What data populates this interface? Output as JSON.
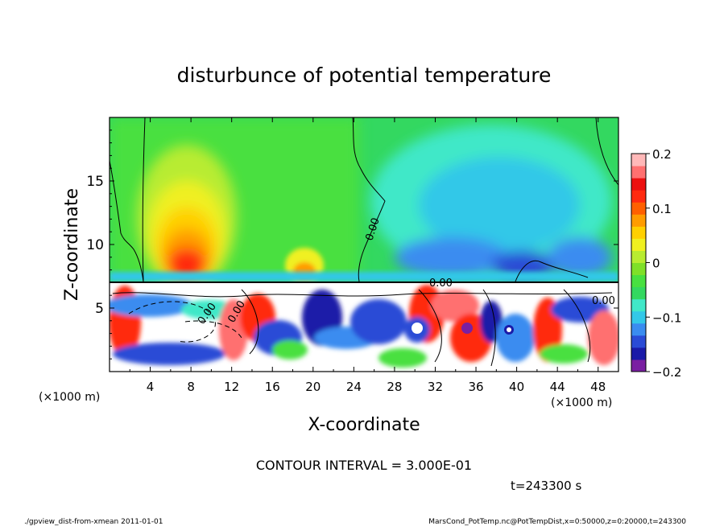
{
  "chart_data": {
    "type": "heatmap",
    "title": "disturbunce of potential temperature",
    "xlabel": "X-coordinate",
    "ylabel": "Z-coordinate",
    "x_unit": "(×1000 m)",
    "y_unit": "(×1000 m)",
    "xlim": [
      0,
      50
    ],
    "ylim": [
      0,
      20
    ],
    "x_ticks": [
      4,
      8,
      12,
      16,
      20,
      24,
      28,
      32,
      36,
      40,
      44,
      48
    ],
    "y_ticks": [
      5,
      10,
      15
    ],
    "colorbar": {
      "range": [
        -0.2,
        0.2
      ],
      "tick_values": [
        0.2,
        0.1,
        0,
        -0.1,
        -0.2
      ],
      "tick_labels": [
        "0.2",
        "0.1",
        "0",
        "−0.1",
        "−0.2"
      ],
      "colors": [
        "#7a1fa2",
        "#1a1aa8",
        "#2a4bd6",
        "#3a8cf0",
        "#33c8e8",
        "#40e8c8",
        "#33d860",
        "#48e040",
        "#7fe028",
        "#b8ec30",
        "#f0f020",
        "#ffd000",
        "#ff9c00",
        "#ff6000",
        "#ff2a10",
        "#ec1010",
        "#ff7070",
        "#ffb8b8"
      ]
    },
    "contour_labels": [
      "0.00",
      "0.00",
      "0.00",
      "0.00",
      "0.00"
    ],
    "contour_interval_text": "CONTOUR INTERVAL = 3.000E-01",
    "time_text": "t=243300 s",
    "features": [
      {
        "kind": "warm_plume",
        "x": 7.5,
        "z_top": 15,
        "peak": 0.15
      },
      {
        "kind": "warm_patch",
        "x": 19,
        "z_top": 9,
        "peak": 0.08
      },
      {
        "kind": "cool_region",
        "x_range": [
          28,
          48
        ],
        "z_range": [
          7,
          18
        ],
        "peak": -0.1
      },
      {
        "kind": "turbulent_layer",
        "z_range": [
          0,
          7.3
        ]
      }
    ]
  },
  "footer": {
    "left": "./gpview_dist-from-xmean   2011-01-01",
    "right": "MarsCond_PotTemp.nc@PotTempDist,x=0:50000,z=0:20000,t=243300"
  }
}
